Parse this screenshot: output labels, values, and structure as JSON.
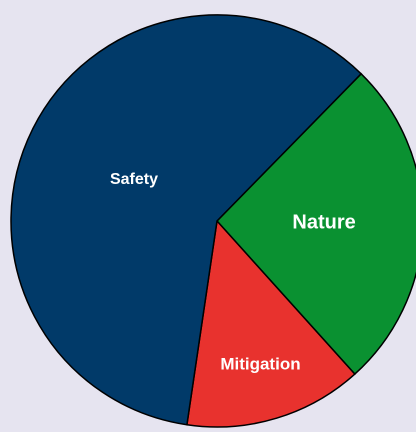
{
  "chart_data": {
    "type": "pie",
    "categories": [
      "Nature",
      "Mitigation",
      "Safety"
    ],
    "values": [
      26,
      14,
      60
    ],
    "colors": [
      "#0a9131",
      "#e8322e",
      "#013a69"
    ]
  }
}
